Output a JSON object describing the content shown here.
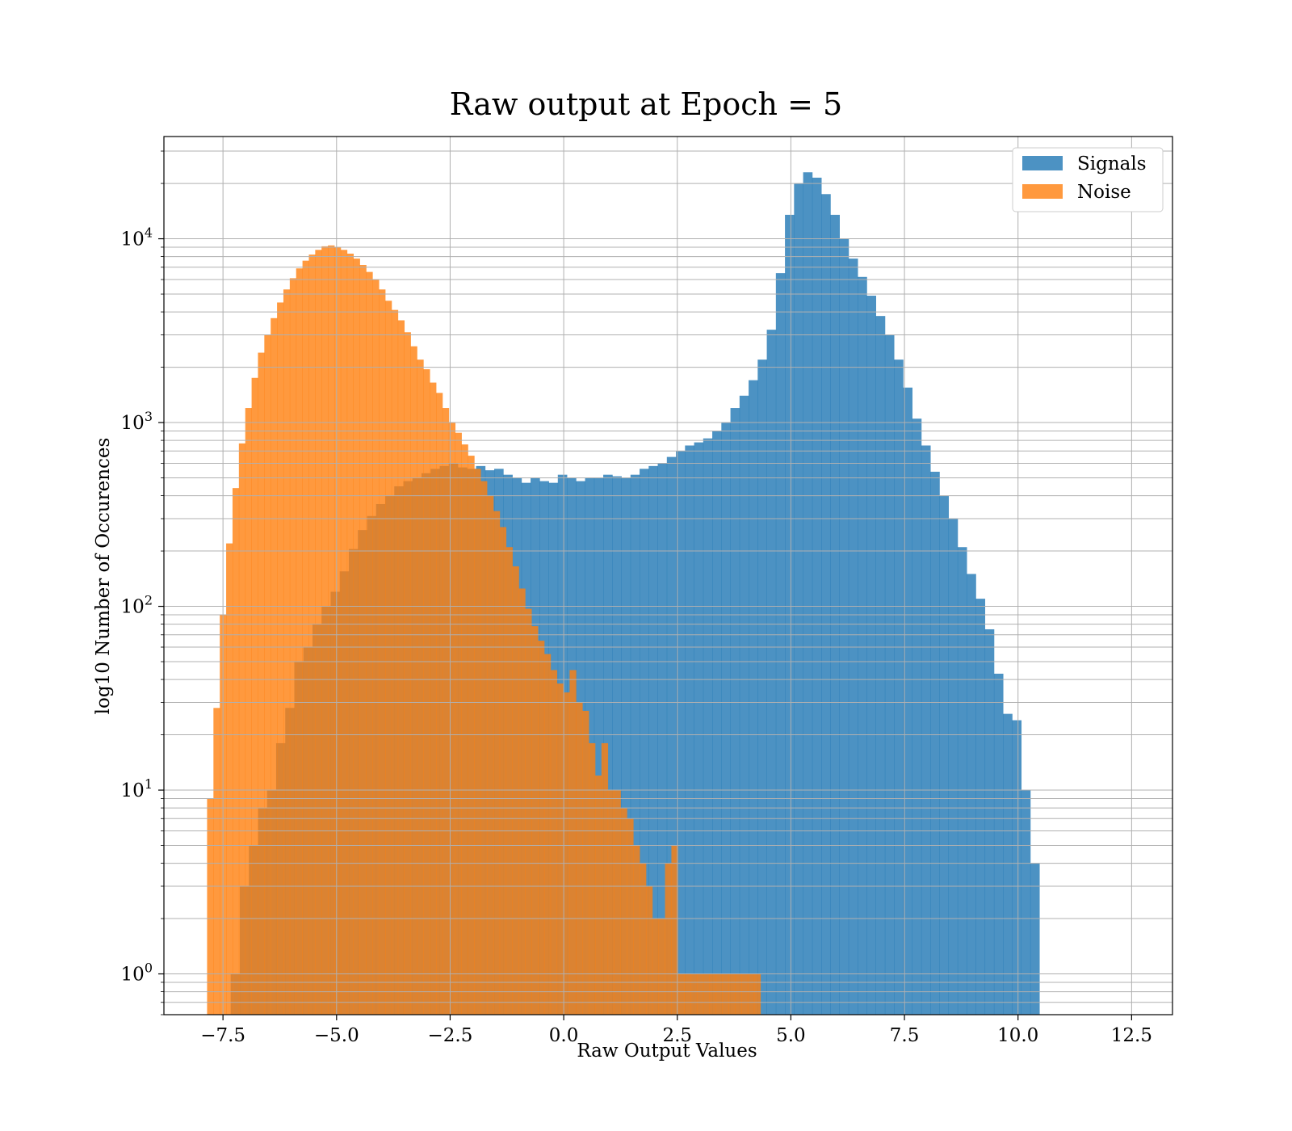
{
  "chart_data": {
    "type": "bar",
    "title": "Raw output at Epoch = 5",
    "xlabel": "Raw Output Values",
    "ylabel": "log10 Number of Occurences",
    "xlim": [
      -8.8,
      13.4
    ],
    "ylim": [
      0.6,
      36000
    ],
    "yscale": "log",
    "grid": true,
    "legend_position": "top-right",
    "x_ticks": [
      -7.5,
      -5.0,
      -2.5,
      0.0,
      2.5,
      5.0,
      7.5,
      10.0,
      12.5
    ],
    "x_tick_labels": [
      "−7.5",
      "−5.0",
      "−2.5",
      "0.0",
      "2.5",
      "5.0",
      "7.5",
      "10.0",
      "12.5"
    ],
    "y_ticks": [
      {
        "value": 1,
        "base": "10",
        "exp": "0"
      },
      {
        "value": 10,
        "base": "10",
        "exp": "1"
      },
      {
        "value": 100,
        "base": "10",
        "exp": "2"
      },
      {
        "value": 1000,
        "base": "10",
        "exp": "3"
      },
      {
        "value": 10000,
        "base": "10",
        "exp": "4"
      }
    ],
    "series": [
      {
        "name": "Signals",
        "color": "#1f77b4",
        "opacity": 0.8,
        "bin_edges_start": -7.33,
        "bin_width": 0.2,
        "counts": [
          1,
          3,
          5,
          8,
          10,
          18,
          28,
          50,
          60,
          80,
          100,
          120,
          155,
          205,
          260,
          310,
          360,
          400,
          450,
          480,
          500,
          530,
          560,
          580,
          600,
          570,
          560,
          580,
          550,
          560,
          520,
          500,
          470,
          500,
          480,
          470,
          520,
          500,
          480,
          500,
          500,
          520,
          510,
          500,
          520,
          560,
          580,
          600,
          650,
          700,
          750,
          780,
          820,
          900,
          1000,
          1200,
          1400,
          1700,
          2200,
          3200,
          6500,
          13500,
          20000,
          23000,
          21500,
          17500,
          13500,
          10000,
          7800,
          6200,
          4900,
          3800,
          3000,
          2200,
          1550,
          1050,
          750,
          540,
          400,
          300,
          210,
          150,
          110,
          75,
          43,
          26,
          24,
          10,
          4
        ],
        "draw_from": -1
      },
      {
        "name": "Noise",
        "color": "#ff7f0e",
        "opacity": 0.8,
        "bin_edges_start": -7.85,
        "bin_width": 0.14,
        "counts": [
          9,
          28,
          90,
          220,
          440,
          770,
          1200,
          1750,
          2400,
          3000,
          3700,
          4500,
          5300,
          6100,
          6900,
          7600,
          8200,
          8700,
          9100,
          9200,
          9000,
          8700,
          8300,
          7800,
          7200,
          6600,
          6000,
          5300,
          4600,
          4100,
          3600,
          3100,
          2600,
          2200,
          1950,
          1650,
          1450,
          1200,
          1000,
          880,
          760,
          660,
          560,
          480,
          400,
          330,
          270,
          210,
          165,
          125,
          97,
          78,
          65,
          55,
          45,
          38,
          34,
          45,
          30,
          27,
          18,
          12,
          18,
          10,
          10,
          8,
          7,
          5,
          4,
          3,
          2,
          2,
          4,
          5,
          1,
          1,
          1,
          1,
          1,
          1,
          1,
          1,
          1,
          1,
          1,
          1,
          1
        ],
        "draw_from": 0
      }
    ]
  }
}
